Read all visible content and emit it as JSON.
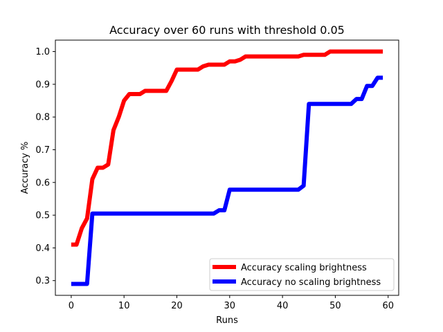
{
  "chart_data": {
    "type": "line",
    "title": "Accuracy over 60 runs with threshold 0.05",
    "xlabel": "Runs",
    "ylabel": "Accuracy %",
    "xlim": [
      -3,
      62
    ],
    "ylim": [
      0.255,
      1.035
    ],
    "xticks": [
      0,
      10,
      20,
      30,
      40,
      50,
      60
    ],
    "yticks": [
      0.3,
      0.4,
      0.5,
      0.6,
      0.7,
      0.8,
      0.9,
      1.0
    ],
    "ytick_labels": [
      "0.3",
      "0.4",
      "0.5",
      "0.6",
      "0.7",
      "0.8",
      "0.9",
      "1.0"
    ],
    "grid": false,
    "legend_position": "lower-right",
    "x": [
      0,
      1,
      2,
      3,
      4,
      5,
      6,
      7,
      8,
      9,
      10,
      11,
      12,
      13,
      14,
      15,
      16,
      17,
      18,
      19,
      20,
      21,
      22,
      23,
      24,
      25,
      26,
      27,
      28,
      29,
      30,
      31,
      32,
      33,
      34,
      35,
      36,
      37,
      38,
      39,
      40,
      41,
      42,
      43,
      44,
      45,
      46,
      47,
      48,
      49,
      50,
      51,
      52,
      53,
      54,
      55,
      56,
      57,
      58,
      59
    ],
    "series": [
      {
        "name": "Accuracy scaling brightness",
        "color": "#ff0000",
        "values": [
          0.41,
          0.41,
          0.46,
          0.49,
          0.61,
          0.645,
          0.645,
          0.655,
          0.76,
          0.8,
          0.85,
          0.87,
          0.87,
          0.87,
          0.88,
          0.88,
          0.88,
          0.88,
          0.88,
          0.91,
          0.945,
          0.945,
          0.945,
          0.945,
          0.945,
          0.955,
          0.96,
          0.96,
          0.96,
          0.96,
          0.97,
          0.97,
          0.975,
          0.985,
          0.985,
          0.985,
          0.985,
          0.985,
          0.985,
          0.985,
          0.985,
          0.985,
          0.985,
          0.985,
          0.99,
          0.99,
          0.99,
          0.99,
          0.99,
          1.0,
          1.0,
          1.0,
          1.0,
          1.0,
          1.0,
          1.0,
          1.0,
          1.0,
          1.0,
          1.0
        ]
      },
      {
        "name": "Accuracy no scaling brightness",
        "color": "#0000ff",
        "values": [
          0.29,
          0.29,
          0.29,
          0.29,
          0.505,
          0.505,
          0.505,
          0.505,
          0.505,
          0.505,
          0.505,
          0.505,
          0.505,
          0.505,
          0.505,
          0.505,
          0.505,
          0.505,
          0.505,
          0.505,
          0.505,
          0.505,
          0.505,
          0.505,
          0.505,
          0.505,
          0.505,
          0.505,
          0.515,
          0.515,
          0.578,
          0.578,
          0.578,
          0.578,
          0.578,
          0.578,
          0.578,
          0.578,
          0.578,
          0.578,
          0.578,
          0.578,
          0.578,
          0.578,
          0.59,
          0.84,
          0.84,
          0.84,
          0.84,
          0.84,
          0.84,
          0.84,
          0.84,
          0.84,
          0.855,
          0.855,
          0.895,
          0.895,
          0.92,
          0.92
        ]
      }
    ]
  }
}
